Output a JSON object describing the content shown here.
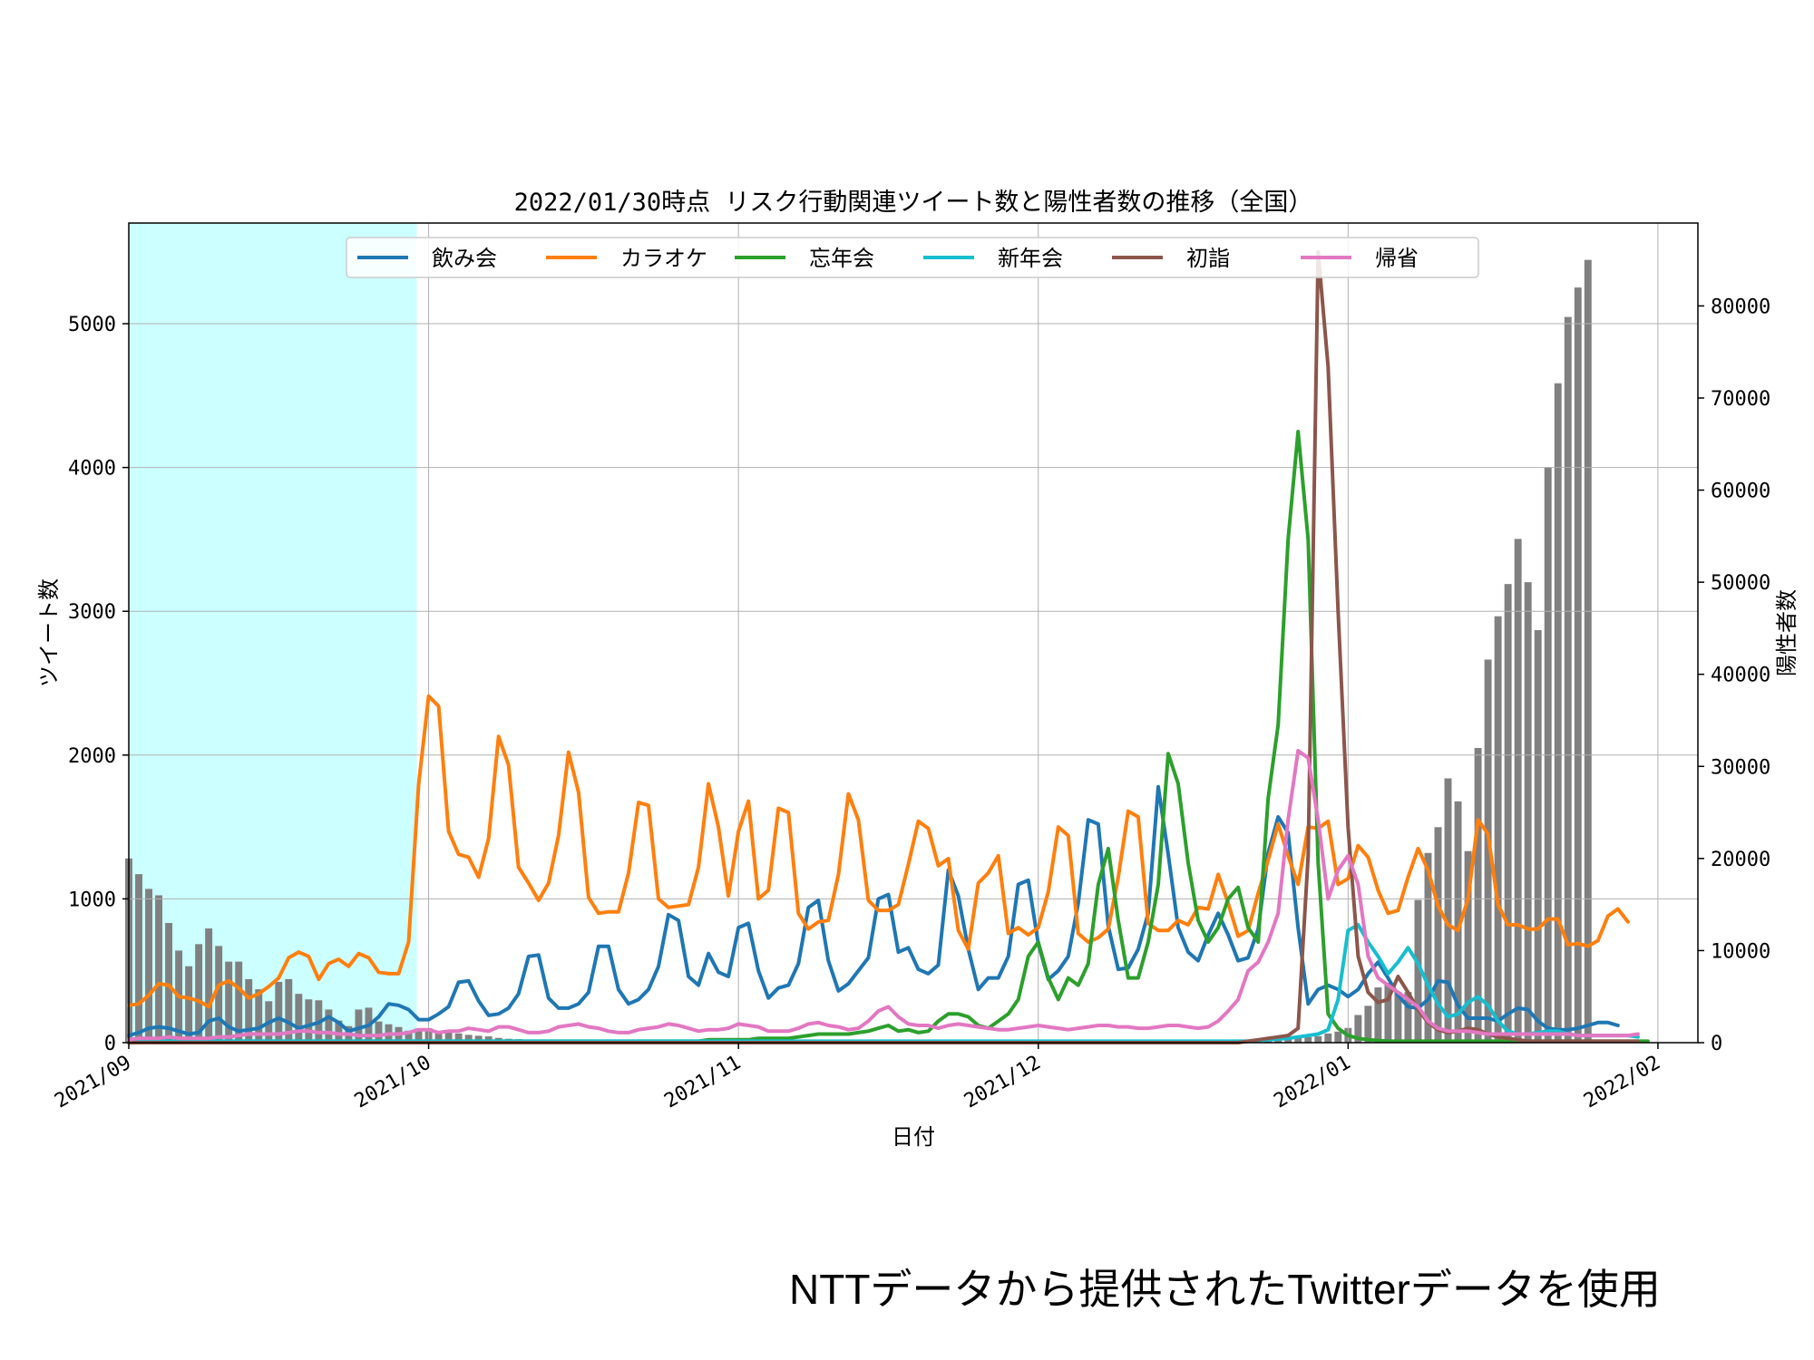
{
  "footer": {
    "source_note": "NTTデータから提供されたTwitterデータを使用"
  },
  "chart_data": {
    "type": "line",
    "title": "2022/01/30時点 リスク行動関連ツイート数と陽性者数の推移（全国）",
    "xlabel": "日付",
    "ylabel": "ツイート数",
    "y2label": "陽性者数",
    "x_range": [
      "2021-09-01",
      "2022-02-05"
    ],
    "ylim": [
      0,
      5700
    ],
    "y2lim": [
      0,
      89000
    ],
    "x_ticks": [
      "2021/09",
      "2021/10",
      "2021/11",
      "2021/12",
      "2022/01",
      "2022/02"
    ],
    "y_ticks": [
      0,
      1000,
      2000,
      3000,
      4000,
      5000
    ],
    "y2_ticks": [
      0,
      10000,
      20000,
      30000,
      40000,
      50000,
      60000,
      70000,
      80000
    ],
    "grid": true,
    "legend_position": "top-center",
    "highlight_span": [
      "2021-09-01",
      "2021-09-30"
    ],
    "highlight_color": "#ccffff",
    "x_start": "2021-09-01",
    "x_end": "2022-01-30",
    "bar_series": {
      "name": "陽性者数",
      "axis": "right",
      "color": "#808080",
      "values": [
        20000,
        18300,
        16700,
        16000,
        13000,
        10000,
        8300,
        10700,
        12400,
        10500,
        8800,
        8800,
        6900,
        5800,
        4500,
        6600,
        6900,
        5300,
        4700,
        4600,
        3600,
        2400,
        1800,
        3600,
        3800,
        2300,
        2000,
        1700,
        1300,
        1550,
        1580,
        1200,
        1090,
        1000,
        850,
        750,
        680,
        520,
        420,
        380,
        330,
        300,
        260,
        250,
        220,
        200,
        160,
        150,
        140,
        110,
        90,
        80,
        70,
        60,
        50,
        40,
        45,
        48,
        44,
        40,
        38,
        36,
        35,
        33,
        30,
        30,
        28,
        28,
        27,
        26,
        25,
        24,
        22,
        22,
        21,
        20,
        20,
        20,
        22,
        25,
        30,
        40,
        45,
        55,
        60,
        70,
        80,
        90,
        100,
        110,
        120,
        130,
        140,
        150,
        160,
        170,
        180,
        190,
        200,
        200,
        200,
        200,
        210,
        210,
        220,
        220,
        230,
        240,
        250,
        280,
        300,
        320,
        330,
        350,
        400,
        500,
        560,
        570,
        600,
        700,
        1000,
        1200,
        1600,
        3000,
        4000,
        6000,
        6500,
        5500,
        5500,
        15500,
        20600,
        23400,
        28700,
        26200,
        20800,
        32000,
        41600,
        46300,
        49800,
        54700,
        50000,
        44800,
        62500,
        71600,
        78800,
        82000,
        85000
      ]
    },
    "series": [
      {
        "name": "飲み会",
        "color": "#1f77b4",
        "values": [
          50,
          70,
          100,
          110,
          100,
          80,
          60,
          70,
          150,
          170,
          110,
          80,
          90,
          100,
          140,
          170,
          140,
          100,
          120,
          140,
          180,
          140,
          80,
          100,
          120,
          180,
          270,
          260,
          230,
          160,
          160,
          200,
          250,
          420,
          430,
          290,
          190,
          200,
          240,
          340,
          600,
          610,
          310,
          240,
          240,
          270,
          350,
          670,
          670,
          370,
          270,
          300,
          370,
          530,
          890,
          850,
          460,
          400,
          620,
          490,
          460,
          800,
          830,
          500,
          310,
          380,
          400,
          550,
          940,
          990,
          570,
          360,
          410,
          500,
          590,
          1000,
          1030,
          630,
          660,
          510,
          480,
          540,
          1200,
          1020,
          650,
          370,
          450,
          450,
          600,
          1100,
          1130,
          690,
          440,
          500,
          600,
          970,
          1550,
          1520,
          810,
          510,
          520,
          650,
          900,
          1780,
          1310,
          800,
          630,
          570,
          750,
          900,
          750,
          570,
          590,
          790,
          1320,
          1570,
          1460,
          800,
          270,
          370,
          400,
          370,
          320,
          370,
          480,
          560,
          450,
          330,
          250,
          240,
          300,
          430,
          420,
          260,
          170,
          170,
          170,
          150,
          200,
          240,
          230,
          150,
          100,
          90,
          90,
          100,
          120,
          140,
          140,
          120
        ]
      },
      {
        "name": "カラオケ",
        "color": "#ff7f0e",
        "values": [
          260,
          270,
          330,
          410,
          400,
          320,
          310,
          290,
          250,
          400,
          430,
          380,
          310,
          340,
          390,
          450,
          590,
          630,
          600,
          440,
          550,
          580,
          530,
          620,
          590,
          490,
          480,
          480,
          700,
          1800,
          2410,
          2340,
          1470,
          1310,
          1290,
          1150,
          1420,
          2130,
          1930,
          1220,
          1110,
          990,
          1110,
          1440,
          2020,
          1740,
          1010,
          900,
          910,
          910,
          1180,
          1670,
          1650,
          1000,
          940,
          950,
          960,
          1220,
          1800,
          1500,
          1020,
          1470,
          1680,
          1000,
          1060,
          1630,
          1600,
          900,
          790,
          840,
          850,
          1170,
          1730,
          1550,
          990,
          920,
          920,
          960,
          1240,
          1540,
          1490,
          1230,
          1280,
          780,
          650,
          1110,
          1180,
          1300,
          760,
          800,
          750,
          800,
          1050,
          1500,
          1440,
          760,
          700,
          730,
          790,
          1150,
          1610,
          1570,
          830,
          780,
          780,
          850,
          820,
          940,
          930,
          1170,
          970,
          740,
          780,
          1040,
          1270,
          1520,
          1300,
          1100,
          1500,
          1490,
          1540,
          1100,
          1140,
          1370,
          1290,
          1060,
          900,
          920,
          1150,
          1350,
          1200,
          950,
          820,
          780,
          1000,
          1550,
          1450,
          960,
          820,
          820,
          790,
          790,
          860,
          860,
          680,
          690,
          670,
          710,
          880,
          930,
          840
        ]
      },
      {
        "name": "忘年会",
        "color": "#2ca02c",
        "values": [
          10,
          10,
          10,
          10,
          10,
          10,
          10,
          10,
          10,
          10,
          10,
          10,
          10,
          10,
          10,
          10,
          10,
          10,
          10,
          10,
          10,
          10,
          10,
          10,
          10,
          10,
          10,
          10,
          10,
          10,
          10,
          10,
          10,
          10,
          10,
          10,
          10,
          10,
          10,
          10,
          10,
          10,
          10,
          10,
          10,
          10,
          10,
          10,
          10,
          10,
          10,
          10,
          10,
          10,
          10,
          10,
          10,
          10,
          20,
          20,
          20,
          20,
          20,
          30,
          30,
          30,
          30,
          40,
          50,
          60,
          60,
          60,
          60,
          70,
          80,
          100,
          120,
          80,
          90,
          70,
          80,
          150,
          200,
          200,
          180,
          120,
          100,
          150,
          200,
          300,
          600,
          700,
          450,
          300,
          450,
          400,
          550,
          1100,
          1350,
          850,
          450,
          450,
          700,
          1100,
          2010,
          1800,
          1250,
          850,
          700,
          800,
          1000,
          1080,
          800,
          700,
          1700,
          2210,
          3500,
          4250,
          3500,
          1250,
          200,
          100,
          50,
          30,
          20,
          15,
          10,
          10,
          10,
          10,
          10,
          10,
          10,
          10,
          10,
          10,
          10,
          10,
          10,
          10,
          10,
          10,
          10,
          10,
          10,
          10,
          10,
          10,
          10,
          10,
          10,
          10,
          10
        ]
      },
      {
        "name": "新年会",
        "color": "#17becf",
        "values": [
          10,
          10,
          10,
          10,
          10,
          10,
          10,
          10,
          10,
          10,
          10,
          10,
          10,
          10,
          10,
          10,
          10,
          10,
          10,
          10,
          10,
          10,
          10,
          10,
          10,
          10,
          10,
          10,
          10,
          10,
          10,
          10,
          10,
          10,
          10,
          10,
          10,
          10,
          10,
          10,
          10,
          10,
          10,
          10,
          10,
          10,
          10,
          10,
          10,
          10,
          10,
          10,
          10,
          10,
          10,
          10,
          10,
          10,
          10,
          10,
          10,
          10,
          10,
          10,
          10,
          10,
          10,
          10,
          10,
          10,
          10,
          10,
          10,
          10,
          10,
          10,
          10,
          10,
          10,
          10,
          10,
          10,
          10,
          10,
          10,
          10,
          10,
          10,
          10,
          10,
          10,
          10,
          10,
          10,
          10,
          10,
          10,
          10,
          10,
          10,
          10,
          10,
          10,
          10,
          10,
          10,
          10,
          10,
          10,
          10,
          10,
          10,
          10,
          15,
          20,
          25,
          30,
          40,
          50,
          60,
          90,
          300,
          780,
          820,
          700,
          600,
          480,
          560,
          660,
          550,
          400,
          270,
          180,
          200,
          280,
          320,
          260,
          150,
          80,
          60,
          60,
          70,
          80,
          80,
          60,
          50,
          50,
          50,
          50,
          50,
          50,
          40
        ]
      },
      {
        "name": "初詣",
        "color": "#8c564b",
        "values": [
          0,
          0,
          0,
          0,
          0,
          0,
          0,
          0,
          0,
          0,
          0,
          0,
          0,
          0,
          0,
          0,
          0,
          0,
          0,
          0,
          0,
          0,
          0,
          0,
          0,
          0,
          0,
          0,
          0,
          0,
          0,
          0,
          0,
          0,
          0,
          0,
          0,
          0,
          0,
          0,
          0,
          0,
          0,
          0,
          0,
          0,
          0,
          0,
          0,
          0,
          0,
          0,
          0,
          0,
          0,
          0,
          0,
          0,
          0,
          0,
          0,
          0,
          0,
          0,
          0,
          0,
          0,
          0,
          0,
          0,
          0,
          0,
          0,
          0,
          0,
          0,
          0,
          0,
          0,
          0,
          0,
          0,
          0,
          0,
          0,
          0,
          0,
          0,
          0,
          0,
          0,
          0,
          0,
          0,
          0,
          0,
          0,
          0,
          0,
          0,
          0,
          0,
          0,
          0,
          0,
          0,
          0,
          0,
          0,
          0,
          0,
          0,
          10,
          20,
          30,
          40,
          50,
          100,
          1300,
          5500,
          4700,
          3000,
          1500,
          600,
          350,
          280,
          300,
          460,
          350,
          230,
          140,
          90,
          70,
          80,
          100,
          90,
          60,
          40,
          30,
          20,
          10,
          10,
          10,
          10,
          10,
          10,
          10,
          10,
          10,
          10,
          10,
          10
        ]
      },
      {
        "name": "帰省",
        "color": "#e377c2",
        "values": [
          20,
          30,
          30,
          30,
          40,
          30,
          30,
          30,
          30,
          40,
          40,
          50,
          60,
          60,
          60,
          60,
          70,
          80,
          80,
          70,
          70,
          60,
          60,
          50,
          50,
          50,
          60,
          60,
          70,
          90,
          90,
          70,
          80,
          80,
          100,
          90,
          80,
          110,
          110,
          90,
          70,
          70,
          80,
          110,
          120,
          130,
          110,
          100,
          80,
          70,
          70,
          90,
          100,
          110,
          130,
          120,
          100,
          80,
          90,
          90,
          100,
          130,
          120,
          110,
          80,
          80,
          80,
          100,
          130,
          140,
          120,
          110,
          90,
          100,
          150,
          220,
          250,
          180,
          130,
          120,
          120,
          100,
          120,
          130,
          120,
          110,
          100,
          90,
          90,
          100,
          110,
          120,
          110,
          100,
          90,
          100,
          110,
          120,
          120,
          110,
          110,
          100,
          100,
          110,
          120,
          120,
          110,
          100,
          110,
          150,
          220,
          300,
          500,
          560,
          700,
          900,
          1550,
          2030,
          1980,
          1550,
          1000,
          1200,
          1300,
          1100,
          600,
          450,
          400,
          350,
          300,
          250,
          150,
          100,
          80,
          80,
          80,
          70,
          60,
          60,
          60,
          60,
          60,
          60,
          60,
          60,
          60,
          50,
          50,
          50,
          50,
          50,
          50,
          60
        ]
      }
    ]
  }
}
